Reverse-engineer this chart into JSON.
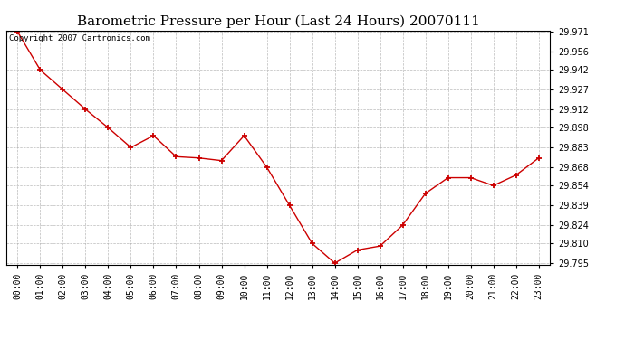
{
  "title": "Barometric Pressure per Hour (Last 24 Hours) 20070111",
  "copyright_text": "Copyright 2007 Cartronics.com",
  "x_labels": [
    "00:00",
    "01:00",
    "02:00",
    "03:00",
    "04:00",
    "05:00",
    "06:00",
    "07:00",
    "08:00",
    "09:00",
    "10:00",
    "11:00",
    "12:00",
    "13:00",
    "14:00",
    "15:00",
    "16:00",
    "17:00",
    "18:00",
    "19:00",
    "20:00",
    "21:00",
    "22:00",
    "23:00"
  ],
  "y_values": [
    29.971,
    29.942,
    29.927,
    29.912,
    29.898,
    29.883,
    29.892,
    29.876,
    29.875,
    29.873,
    29.892,
    29.868,
    29.839,
    29.81,
    29.795,
    29.805,
    29.808,
    29.824,
    29.848,
    29.86,
    29.86,
    29.854,
    29.862,
    29.875
  ],
  "y_min": 29.795,
  "y_max": 29.971,
  "y_ticks": [
    29.795,
    29.81,
    29.824,
    29.839,
    29.854,
    29.868,
    29.883,
    29.898,
    29.912,
    29.927,
    29.942,
    29.956,
    29.971
  ],
  "line_color": "#cc0000",
  "marker_color": "#cc0000",
  "bg_color": "#ffffff",
  "plot_bg_color": "#ffffff",
  "grid_color": "#aaaaaa",
  "title_fontsize": 11,
  "tick_fontsize": 7,
  "copyright_fontsize": 6.5
}
